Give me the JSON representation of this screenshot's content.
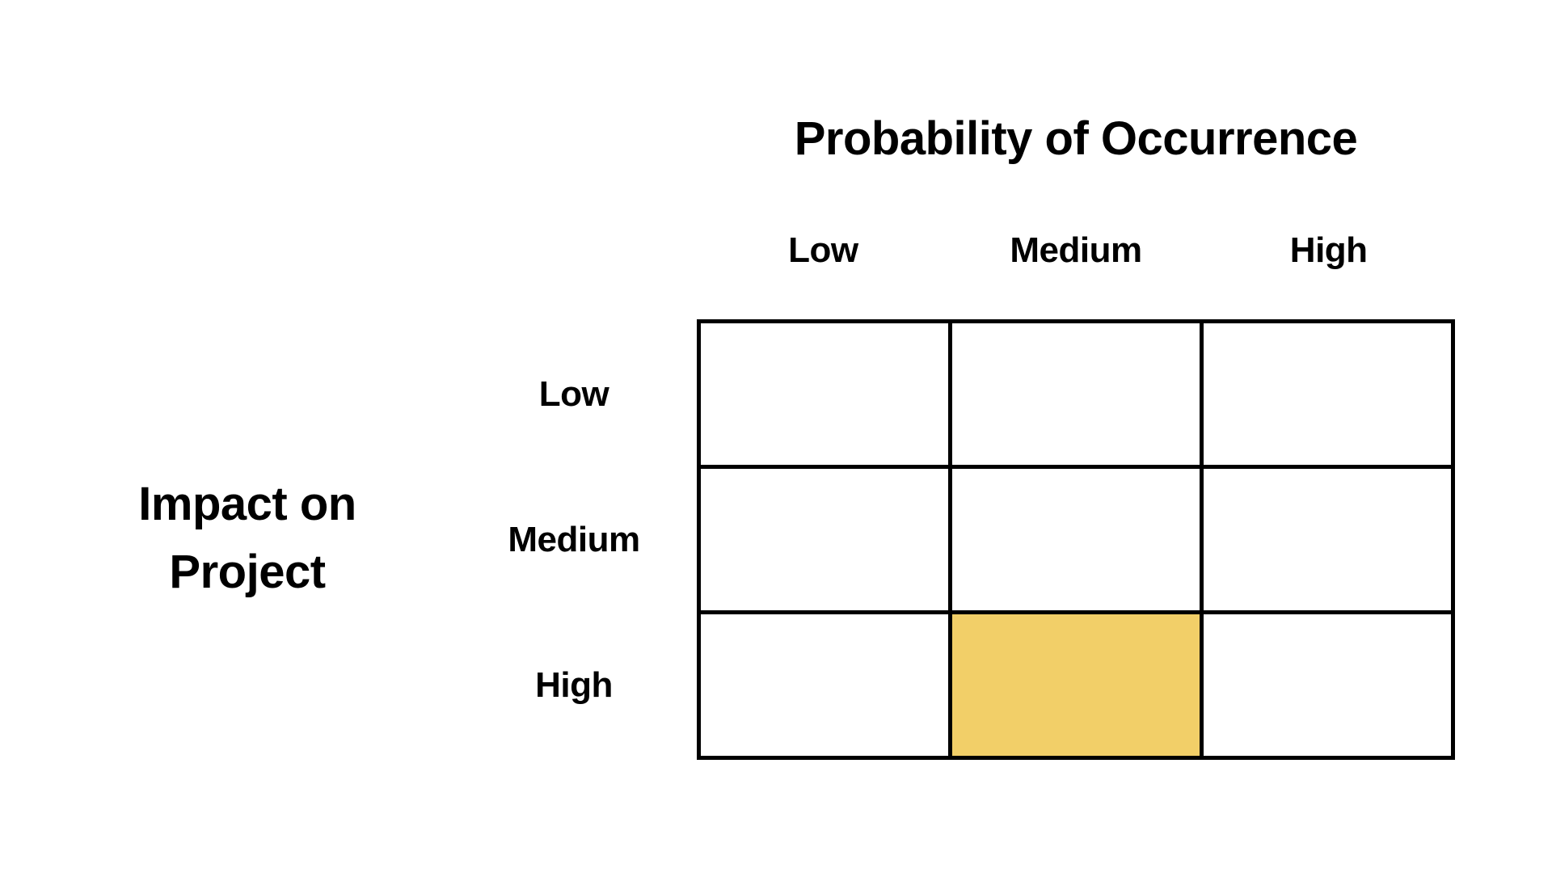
{
  "matrix": {
    "column_axis_title": "Probability of Occurrence",
    "column_labels": [
      "Low",
      "Medium",
      "High"
    ],
    "row_axis_title_lines": [
      "Impact on",
      "Project"
    ],
    "row_labels": [
      "Low",
      "Medium",
      "High"
    ],
    "cells": [
      [
        0,
        0,
        0
      ],
      [
        0,
        0,
        0
      ],
      [
        0,
        1,
        0
      ]
    ],
    "highlighted_cell": {
      "row": "High",
      "column": "Medium"
    },
    "colors": {
      "highlight": "#F2CF68",
      "line": "#000000",
      "text": "#000000",
      "background": "#FFFFFF"
    }
  }
}
